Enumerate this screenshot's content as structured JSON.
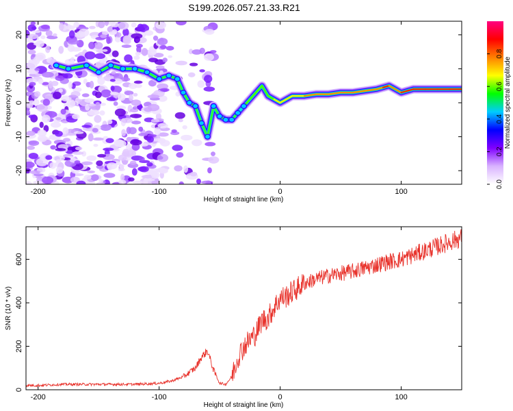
{
  "chart_data": [
    {
      "type": "heatmap",
      "title": "S199.2026.057.21.33.R21",
      "xlabel": "Height of straight line (km)",
      "ylabel": "Frequency (Hz)",
      "xlim": [
        -210,
        150
      ],
      "ylim": [
        -24,
        24
      ],
      "xticks": [
        -200,
        -100,
        0,
        100
      ],
      "yticks": [
        -20,
        -10,
        0,
        10,
        20
      ],
      "colorbar": {
        "label": "Normalized spectral amplitude",
        "range": [
          0,
          1
        ],
        "ticks": [
          "0.0",
          "0.2",
          "0.4",
          "0.6",
          "0.8"
        ],
        "tick_values": [
          0,
          0.2,
          0.4,
          0.6,
          0.8
        ],
        "colors": [
          "#ffffff",
          "#d9b3ff",
          "#8000ff",
          "#0000ff",
          "#00ccff",
          "#00ff00",
          "#ffff00",
          "#ff8000",
          "#ff0000",
          "#ff0080"
        ]
      },
      "ridge": {
        "x": [
          -185,
          -175,
          -160,
          -150,
          -140,
          -130,
          -120,
          -110,
          -100,
          -92,
          -85,
          -80,
          -75,
          -70,
          -65,
          -60,
          -55,
          -50,
          -45,
          -40,
          -35,
          -30,
          -25,
          -20,
          -15,
          -10,
          -5,
          0,
          10,
          20,
          30,
          40,
          50,
          60,
          70,
          80,
          85,
          90,
          95,
          100,
          110,
          120,
          130,
          140,
          150
        ],
        "y": [
          11,
          10,
          11,
          9,
          11,
          10,
          10,
          9,
          7,
          8,
          7,
          3,
          0,
          -1,
          -6,
          -10,
          -1,
          -4,
          -5,
          -5,
          -3,
          -1,
          1,
          3,
          5,
          2,
          1,
          0,
          2,
          2,
          2.5,
          2.5,
          3,
          3,
          3.5,
          4,
          4.5,
          5,
          4,
          3,
          4,
          4,
          4,
          4,
          4
        ],
        "amplitude": [
          0.25,
          0.25,
          0.3,
          0.25,
          0.25,
          0.3,
          0.3,
          0.3,
          0.3,
          0.35,
          0.3,
          0.3,
          0.25,
          0.3,
          0.35,
          0.3,
          0.2,
          0.25,
          0.35,
          0.45,
          0.5,
          0.55,
          0.6,
          0.6,
          0.65,
          0.7,
          0.7,
          0.75,
          0.8,
          0.8,
          0.85,
          0.85,
          0.85,
          0.85,
          0.9,
          0.85,
          0.9,
          0.9,
          0.85,
          0.9,
          0.95,
          0.95,
          0.95,
          0.95,
          0.95
        ]
      },
      "noise_region_km": [
        -210,
        -55
      ]
    },
    {
      "type": "line",
      "title": "",
      "xlabel": "Height of straight line (km)",
      "ylabel": "SNR (10 * v/v)",
      "xlim": [
        -210,
        150
      ],
      "ylim": [
        0,
        750
      ],
      "xticks": [
        -200,
        -100,
        0,
        100
      ],
      "yticks": [
        0,
        200,
        400,
        600
      ],
      "color": "#e8312a",
      "x": [
        -210,
        -200,
        -180,
        -160,
        -140,
        -120,
        -100,
        -90,
        -80,
        -70,
        -65,
        -60,
        -55,
        -50,
        -45,
        -40,
        -35,
        -30,
        -25,
        -20,
        -15,
        -10,
        -5,
        0,
        5,
        10,
        15,
        20,
        30,
        40,
        50,
        60,
        70,
        80,
        90,
        100,
        110,
        120,
        130,
        140,
        150
      ],
      "y": [
        20,
        20,
        25,
        25,
        25,
        25,
        30,
        40,
        60,
        100,
        150,
        180,
        90,
        30,
        25,
        60,
        150,
        200,
        230,
        260,
        320,
        330,
        380,
        420,
        430,
        450,
        470,
        490,
        510,
        525,
        535,
        545,
        560,
        575,
        590,
        600,
        620,
        640,
        660,
        680,
        700
      ]
    }
  ]
}
